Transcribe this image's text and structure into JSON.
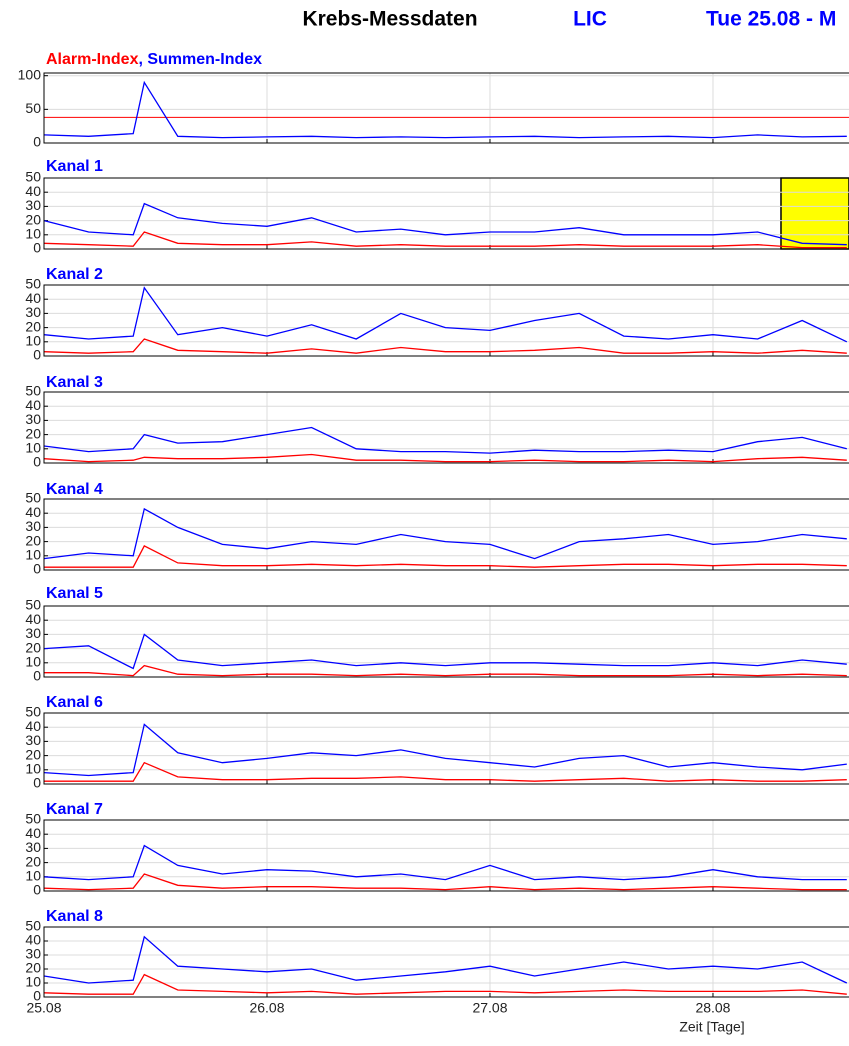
{
  "header": {
    "title": "Krebs-Messdaten",
    "subtitle": "LIC",
    "date": "Tue 25.08 - M"
  },
  "chart_data": [
    {
      "type": "line",
      "title_parts": [
        {
          "text": "Alarm-Index",
          "color": "#ff0000"
        },
        {
          "text": ", Summen-Index",
          "color": "#0000ff"
        }
      ],
      "x": [
        0,
        0.2,
        0.4,
        0.45,
        0.6,
        0.8,
        1.0,
        1.2,
        1.4,
        1.6,
        1.8,
        2.0,
        2.2,
        2.4,
        2.6,
        2.8,
        3.0,
        3.2,
        3.4,
        3.6
      ],
      "series": [
        {
          "color": "#0000ff",
          "values": [
            12,
            10,
            14,
            90,
            10,
            8,
            9,
            10,
            8,
            9,
            8,
            9,
            10,
            8,
            9,
            10,
            8,
            12,
            9,
            10
          ]
        }
      ],
      "threshold": {
        "value": 38,
        "color": "#ff0000"
      },
      "xlim": [
        0,
        3.61
      ],
      "xticks": [
        0,
        1,
        2,
        3
      ],
      "ylim": [
        0,
        104
      ],
      "yticks": [
        0,
        50,
        100
      ],
      "grid": true
    },
    {
      "type": "line",
      "title": "Kanal 1",
      "x": [
        0,
        0.2,
        0.4,
        0.45,
        0.6,
        0.8,
        1.0,
        1.2,
        1.4,
        1.6,
        1.8,
        2.0,
        2.2,
        2.4,
        2.6,
        2.8,
        3.0,
        3.2,
        3.4,
        3.6
      ],
      "series": [
        {
          "color": "#0000ff",
          "values": [
            20,
            12,
            10,
            32,
            22,
            18,
            16,
            22,
            12,
            14,
            10,
            12,
            12,
            15,
            10,
            10,
            10,
            12,
            4,
            3
          ]
        },
        {
          "color": "#ff0000",
          "values": [
            4,
            3,
            2,
            12,
            4,
            3,
            3,
            5,
            2,
            3,
            2,
            2,
            2,
            3,
            2,
            2,
            2,
            3,
            1,
            1
          ]
        }
      ],
      "highlight": {
        "x": [
          3.305,
          3.61
        ],
        "color": "#ffff00"
      },
      "xlim": [
        0,
        3.61
      ],
      "xticks": [
        0,
        1,
        2,
        3
      ],
      "ylim": [
        0,
        50
      ],
      "yticks": [
        0,
        10,
        20,
        30,
        40,
        50
      ],
      "grid": true
    },
    {
      "type": "line",
      "title": "Kanal 2",
      "x": [
        0,
        0.2,
        0.4,
        0.45,
        0.6,
        0.8,
        1.0,
        1.2,
        1.4,
        1.6,
        1.8,
        2.0,
        2.2,
        2.4,
        2.6,
        2.8,
        3.0,
        3.2,
        3.4,
        3.6
      ],
      "series": [
        {
          "color": "#0000ff",
          "values": [
            15,
            12,
            14,
            48,
            15,
            20,
            14,
            22,
            12,
            30,
            20,
            18,
            25,
            30,
            14,
            12,
            15,
            12,
            25,
            10
          ]
        },
        {
          "color": "#ff0000",
          "values": [
            3,
            2,
            3,
            12,
            4,
            3,
            2,
            5,
            2,
            6,
            3,
            3,
            4,
            6,
            2,
            2,
            3,
            2,
            4,
            2
          ]
        }
      ],
      "xlim": [
        0,
        3.61
      ],
      "xticks": [
        0,
        1,
        2,
        3
      ],
      "ylim": [
        0,
        50
      ],
      "yticks": [
        0,
        10,
        20,
        30,
        40,
        50
      ],
      "grid": true
    },
    {
      "type": "line",
      "title": "Kanal 3",
      "x": [
        0,
        0.2,
        0.4,
        0.45,
        0.6,
        0.8,
        1.0,
        1.2,
        1.4,
        1.6,
        1.8,
        2.0,
        2.2,
        2.4,
        2.6,
        2.8,
        3.0,
        3.2,
        3.4,
        3.6
      ],
      "series": [
        {
          "color": "#0000ff",
          "values": [
            12,
            8,
            10,
            20,
            14,
            15,
            20,
            25,
            10,
            8,
            8,
            7,
            9,
            8,
            8,
            9,
            8,
            15,
            18,
            10
          ]
        },
        {
          "color": "#ff0000",
          "values": [
            3,
            1,
            2,
            4,
            3,
            3,
            4,
            6,
            2,
            2,
            1,
            1,
            2,
            1,
            1,
            2,
            1,
            3,
            4,
            2
          ]
        }
      ],
      "xlim": [
        0,
        3.61
      ],
      "xticks": [
        0,
        1,
        2,
        3
      ],
      "ylim": [
        0,
        50
      ],
      "yticks": [
        0,
        10,
        20,
        30,
        40,
        50
      ],
      "grid": true
    },
    {
      "type": "line",
      "title": "Kanal 4",
      "x": [
        0,
        0.2,
        0.4,
        0.45,
        0.6,
        0.8,
        1.0,
        1.2,
        1.4,
        1.6,
        1.8,
        2.0,
        2.2,
        2.4,
        2.6,
        2.8,
        3.0,
        3.2,
        3.4,
        3.6
      ],
      "series": [
        {
          "color": "#0000ff",
          "values": [
            8,
            12,
            10,
            43,
            30,
            18,
            15,
            20,
            18,
            25,
            20,
            18,
            8,
            20,
            22,
            25,
            18,
            20,
            25,
            22
          ]
        },
        {
          "color": "#ff0000",
          "values": [
            2,
            2,
            2,
            17,
            5,
            3,
            3,
            4,
            3,
            4,
            3,
            3,
            2,
            3,
            4,
            4,
            3,
            4,
            4,
            3
          ]
        }
      ],
      "xlim": [
        0,
        3.61
      ],
      "xticks": [
        0,
        1,
        2,
        3
      ],
      "ylim": [
        0,
        50
      ],
      "yticks": [
        0,
        10,
        20,
        30,
        40,
        50
      ],
      "grid": true
    },
    {
      "type": "line",
      "title": "Kanal 5",
      "x": [
        0,
        0.2,
        0.4,
        0.45,
        0.6,
        0.8,
        1.0,
        1.2,
        1.4,
        1.6,
        1.8,
        2.0,
        2.2,
        2.4,
        2.6,
        2.8,
        3.0,
        3.2,
        3.4,
        3.6
      ],
      "series": [
        {
          "color": "#0000ff",
          "values": [
            20,
            22,
            6,
            30,
            12,
            8,
            10,
            12,
            8,
            10,
            8,
            10,
            10,
            9,
            8,
            8,
            10,
            8,
            12,
            9
          ]
        },
        {
          "color": "#ff0000",
          "values": [
            3,
            3,
            1,
            8,
            2,
            1,
            2,
            2,
            1,
            2,
            1,
            2,
            2,
            1,
            1,
            1,
            2,
            1,
            2,
            1
          ]
        }
      ],
      "xlim": [
        0,
        3.61
      ],
      "xticks": [
        0,
        1,
        2,
        3
      ],
      "ylim": [
        0,
        50
      ],
      "yticks": [
        0,
        10,
        20,
        30,
        40,
        50
      ],
      "grid": true
    },
    {
      "type": "line",
      "title": "Kanal 6",
      "x": [
        0,
        0.2,
        0.4,
        0.45,
        0.6,
        0.8,
        1.0,
        1.2,
        1.4,
        1.6,
        1.8,
        2.0,
        2.2,
        2.4,
        2.6,
        2.8,
        3.0,
        3.2,
        3.4,
        3.6
      ],
      "series": [
        {
          "color": "#0000ff",
          "values": [
            8,
            6,
            8,
            42,
            22,
            15,
            18,
            22,
            20,
            24,
            18,
            15,
            12,
            18,
            20,
            12,
            15,
            12,
            10,
            14
          ]
        },
        {
          "color": "#ff0000",
          "values": [
            2,
            2,
            2,
            15,
            5,
            3,
            3,
            4,
            4,
            5,
            3,
            3,
            2,
            3,
            4,
            2,
            3,
            2,
            2,
            3
          ]
        }
      ],
      "xlim": [
        0,
        3.61
      ],
      "xticks": [
        0,
        1,
        2,
        3
      ],
      "ylim": [
        0,
        50
      ],
      "yticks": [
        0,
        10,
        20,
        30,
        40,
        50
      ],
      "grid": true
    },
    {
      "type": "line",
      "title": "Kanal 7",
      "x": [
        0,
        0.2,
        0.4,
        0.45,
        0.6,
        0.8,
        1.0,
        1.2,
        1.4,
        1.6,
        1.8,
        2.0,
        2.2,
        2.4,
        2.6,
        2.8,
        3.0,
        3.2,
        3.4,
        3.6
      ],
      "series": [
        {
          "color": "#0000ff",
          "values": [
            10,
            8,
            10,
            32,
            18,
            12,
            15,
            14,
            10,
            12,
            8,
            18,
            8,
            10,
            8,
            10,
            15,
            10,
            8,
            8
          ]
        },
        {
          "color": "#ff0000",
          "values": [
            2,
            1,
            2,
            12,
            4,
            2,
            3,
            3,
            2,
            2,
            1,
            3,
            1,
            2,
            1,
            2,
            3,
            2,
            1,
            1
          ]
        }
      ],
      "xlim": [
        0,
        3.61
      ],
      "xticks": [
        0,
        1,
        2,
        3
      ],
      "ylim": [
        0,
        50
      ],
      "yticks": [
        0,
        10,
        20,
        30,
        40,
        50
      ],
      "grid": true
    },
    {
      "type": "line",
      "title": "Kanal 8",
      "xlabel": "Zeit [Tage]",
      "x": [
        0,
        0.2,
        0.4,
        0.45,
        0.6,
        0.8,
        1.0,
        1.2,
        1.4,
        1.6,
        1.8,
        2.0,
        2.2,
        2.4,
        2.6,
        2.8,
        3.0,
        3.2,
        3.4,
        3.6
      ],
      "series": [
        {
          "color": "#0000ff",
          "values": [
            15,
            10,
            12,
            43,
            22,
            20,
            18,
            20,
            12,
            15,
            18,
            22,
            15,
            20,
            25,
            20,
            22,
            20,
            25,
            10
          ]
        },
        {
          "color": "#ff0000",
          "values": [
            3,
            2,
            2,
            16,
            5,
            4,
            3,
            4,
            2,
            3,
            4,
            4,
            3,
            4,
            5,
            4,
            4,
            4,
            5,
            2
          ]
        }
      ],
      "xlim": [
        0,
        3.61
      ],
      "xticks": [
        {
          "value": 0,
          "label": "25.08"
        },
        {
          "value": 1,
          "label": "26.08"
        },
        {
          "value": 2,
          "label": "27.08"
        },
        {
          "value": 3,
          "label": "28.08"
        }
      ],
      "ylim": [
        0,
        50
      ],
      "yticks": [
        0,
        10,
        20,
        30,
        40,
        50
      ],
      "grid": true
    }
  ]
}
